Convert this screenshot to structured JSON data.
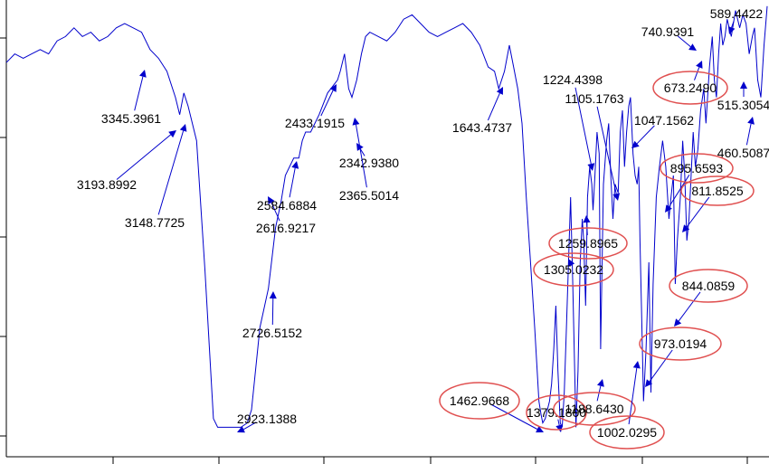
{
  "colors": {
    "trace": "#0000cc",
    "arrow": "#0000cc",
    "circle": "#e05050",
    "axis": "#000000"
  },
  "chart_data": {
    "type": "line",
    "title": "",
    "xlabel": "",
    "ylabel": "",
    "x_reversed": true,
    "xlim": [
      4000,
      400
    ],
    "ylim": [
      0,
      100
    ],
    "grid": false,
    "series": [
      {
        "x": [
          4000,
          3960,
          3920,
          3880,
          3840,
          3800,
          3760,
          3720,
          3680,
          3640,
          3600,
          3560,
          3520,
          3480,
          3440,
          3400,
          3360,
          3320,
          3280,
          3240,
          3200,
          3180,
          3160,
          3140,
          3100,
          3060,
          3020,
          3000,
          2980,
          2960,
          2940,
          2923,
          2890,
          2860,
          2840,
          2800,
          2760,
          2726,
          2700,
          2680,
          2640,
          2616,
          2600,
          2584,
          2560,
          2520,
          2480,
          2433,
          2420,
          2400,
          2380,
          2365,
          2342,
          2320,
          2300,
          2280,
          2240,
          2200,
          2160,
          2120,
          2080,
          2040,
          2000,
          1960,
          1920,
          1880,
          1840,
          1800,
          1760,
          1720,
          1690,
          1670,
          1643,
          1620,
          1600,
          1580,
          1560,
          1540,
          1520,
          1500,
          1480,
          1470,
          1462,
          1450,
          1440,
          1430,
          1420,
          1410,
          1400,
          1390,
          1379,
          1370,
          1360,
          1350,
          1340,
          1330,
          1320,
          1305,
          1295,
          1285,
          1275,
          1268,
          1259,
          1250,
          1240,
          1230,
          1224,
          1215,
          1205,
          1195,
          1188,
          1175,
          1160,
          1150,
          1140,
          1130,
          1120,
          1105,
          1095,
          1085,
          1075,
          1065,
          1055,
          1047,
          1035,
          1025,
          1015,
          1008,
          1002,
          995,
          985,
          973,
          960,
          950,
          940,
          925,
          910,
          895,
          880,
          865,
          855,
          844,
          835,
          825,
          811,
          800,
          790,
          780,
          770,
          760,
          750,
          740,
          728,
          715,
          700,
          690,
          673,
          660,
          650,
          640,
          630,
          620,
          610,
          600,
          589,
          570,
          550,
          530,
          515,
          500,
          485,
          470,
          460,
          445,
          430,
          415,
          400
        ],
        "y": [
          86,
          88,
          87,
          88,
          89,
          88,
          91,
          92,
          94,
          92,
          93,
          91,
          92,
          94,
          95,
          94,
          93,
          89,
          87,
          84,
          78,
          74,
          79,
          76,
          68,
          38,
          4,
          2,
          2,
          2,
          2,
          2,
          2,
          3,
          6,
          25,
          34,
          48,
          54,
          60,
          64,
          64,
          68,
          70,
          70,
          74,
          79,
          82,
          84,
          88,
          80,
          78,
          82,
          88,
          92,
          93,
          92,
          91,
          93,
          96,
          97,
          95,
          93,
          92,
          93,
          94,
          95,
          93,
          90,
          85,
          84,
          80,
          84,
          90,
          85,
          80,
          72,
          55,
          40,
          25,
          8,
          5,
          3,
          4,
          6,
          8,
          12,
          20,
          30,
          15,
          3,
          2,
          10,
          25,
          40,
          55,
          35,
          2,
          15,
          40,
          50,
          45,
          30,
          55,
          62,
          58,
          52,
          60,
          70,
          65,
          20,
          58,
          68,
          72,
          60,
          50,
          58,
          56,
          70,
          75,
          62,
          70,
          76,
          78,
          65,
          60,
          58,
          62,
          45,
          30,
          8,
          20,
          40,
          10,
          35,
          55,
          62,
          68,
          62,
          50,
          55,
          60,
          35,
          45,
          55,
          68,
          60,
          45,
          50,
          60,
          70,
          62,
          66,
          75,
          80,
          72,
          85,
          92,
          82,
          78,
          88,
          95,
          90,
          92,
          96,
          92,
          98,
          94,
          97,
          95,
          88,
          92,
          94,
          82,
          78,
          90,
          99
        ]
      }
    ],
    "peak_labels": [
      {
        "text": "3345.3961",
        "x": 3345.3961,
        "circled": false
      },
      {
        "text": "3193.8992",
        "x": 3193.8992,
        "circled": false
      },
      {
        "text": "3148.7725",
        "x": 3148.7725,
        "circled": false
      },
      {
        "text": "2923.1388",
        "x": 2923.1388,
        "circled": false
      },
      {
        "text": "2726.5152",
        "x": 2726.5152,
        "circled": false
      },
      {
        "text": "2616.9217",
        "x": 2616.9217,
        "circled": false
      },
      {
        "text": "2584.6884",
        "x": 2584.6884,
        "circled": false
      },
      {
        "text": "2433.1915",
        "x": 2433.1915,
        "circled": false
      },
      {
        "text": "2342.9380",
        "x": 2342.938,
        "circled": false
      },
      {
        "text": "2365.5014",
        "x": 2365.5014,
        "circled": false
      },
      {
        "text": "1643.4737",
        "x": 1643.4737,
        "circled": false
      },
      {
        "text": "1224.4398",
        "x": 1224.4398,
        "circled": false
      },
      {
        "text": "1105.1763",
        "x": 1105.1763,
        "circled": false
      },
      {
        "text": "1047.1562",
        "x": 1047.1562,
        "circled": false
      },
      {
        "text": "740.9391",
        "x": 740.9391,
        "circled": false
      },
      {
        "text": "589.4422",
        "x": 589.4422,
        "circled": false
      },
      {
        "text": "673.2490",
        "x": 673.249,
        "circled": true
      },
      {
        "text": "515.3054",
        "x": 515.3054,
        "circled": false
      },
      {
        "text": "460.5087",
        "x": 460.5087,
        "circled": false
      },
      {
        "text": "895.6593",
        "x": 895.6593,
        "circled": true
      },
      {
        "text": "811.8525",
        "x": 811.8525,
        "circled": true
      },
      {
        "text": "1259.8965",
        "x": 1259.8965,
        "circled": true
      },
      {
        "text": "1305.0232",
        "x": 1305.0232,
        "circled": true
      },
      {
        "text": "844.0859",
        "x": 844.0859,
        "circled": true
      },
      {
        "text": "973.0194",
        "x": 973.0194,
        "circled": true
      },
      {
        "text": "1462.9668",
        "x": 1462.9668,
        "circled": true
      },
      {
        "text": "1379.1800",
        "x": 1379.18,
        "circled": true
      },
      {
        "text": "1188.6430",
        "x": 1188.643,
        "circled": true
      },
      {
        "text": "1002.0295",
        "x": 1002.0295,
        "circled": true
      }
    ]
  }
}
